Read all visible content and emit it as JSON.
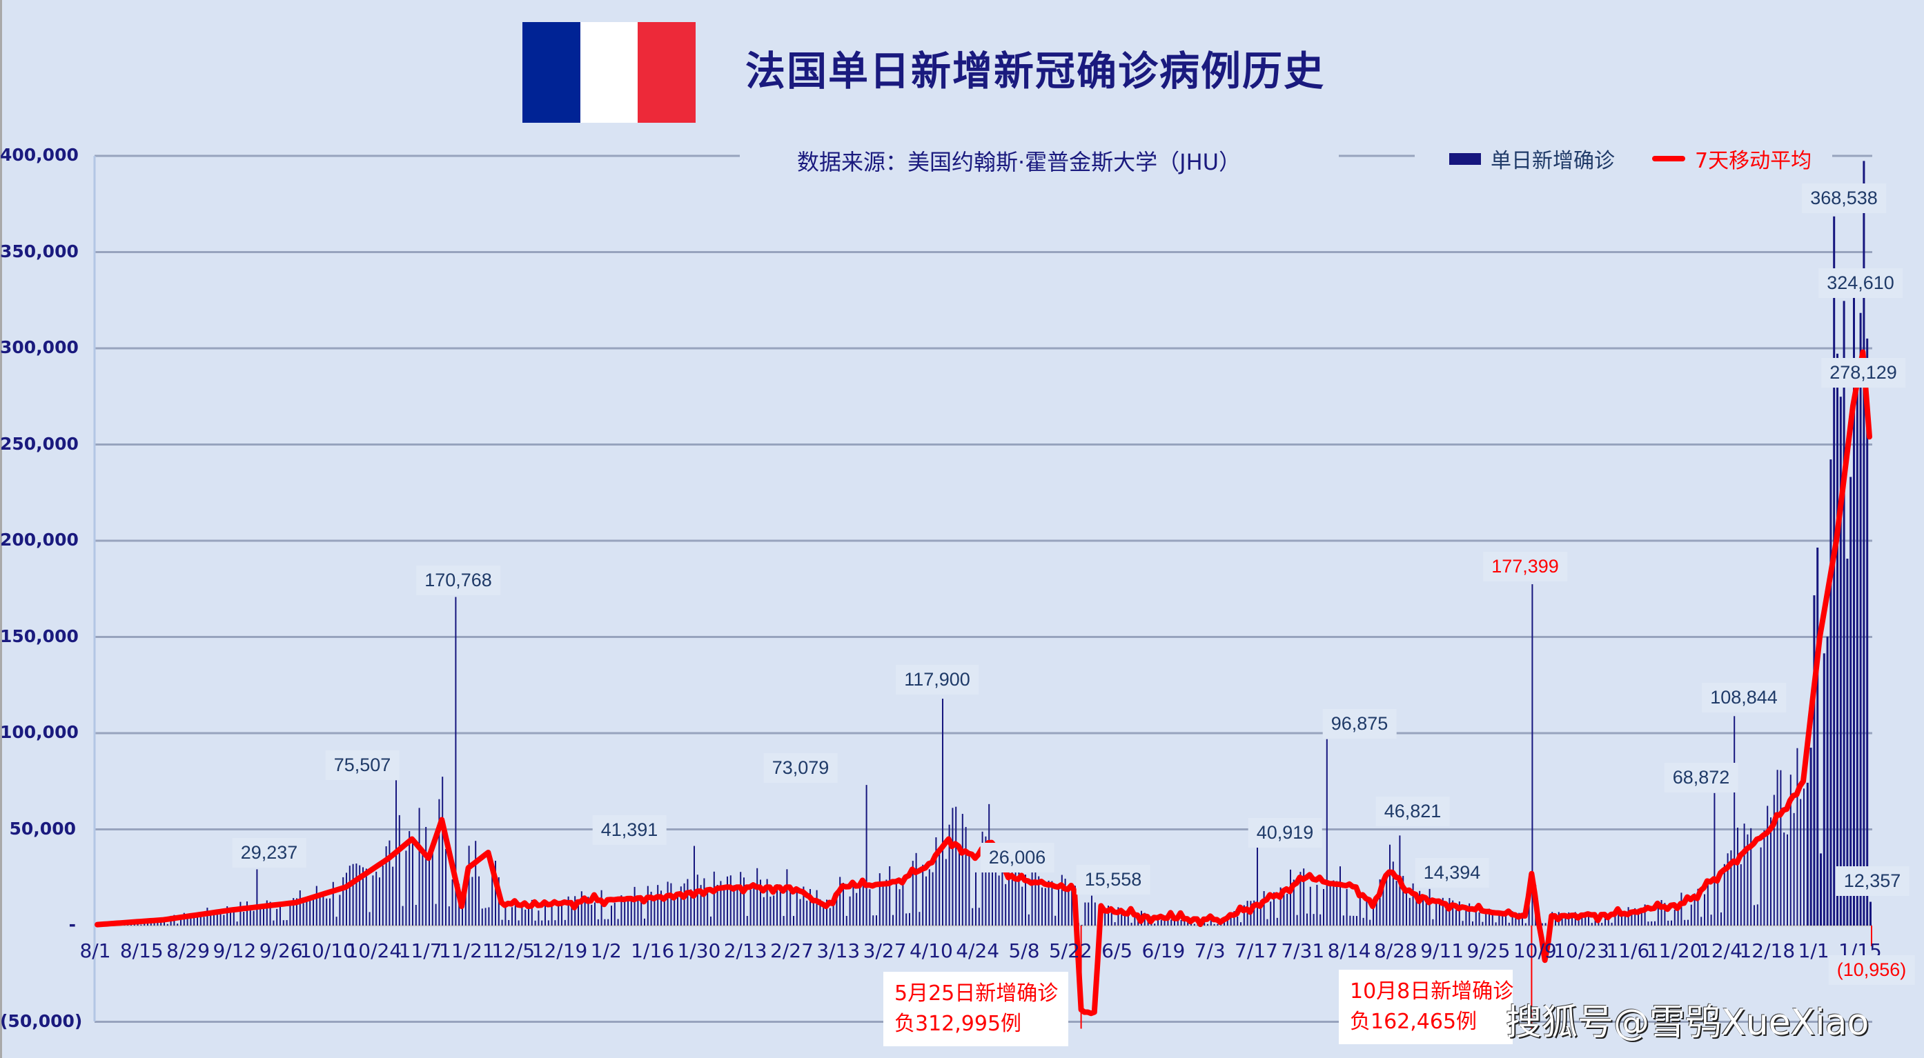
{
  "title": "法国单日新增新冠确诊病例历史",
  "subtitle": "数据来源：美国约翰斯·霍普金斯大学（JHU）",
  "legend": {
    "bars": "单日新增确诊",
    "line": "7天移动平均"
  },
  "colors": {
    "background": "#d9e3f3",
    "bars": "#16167e",
    "line": "#ff0000",
    "grid": "#97a3bd",
    "title": "#1a1a7e",
    "flag_blue": "#002395",
    "flag_white": "#ffffff",
    "flag_red": "#ed2939"
  },
  "watermark": "搜狐号@雪鸮XueXiao",
  "y_ticks": [
    "400,000",
    "350,000",
    "300,000",
    "250,000",
    "200,000",
    "150,000",
    "100,000",
    "50,000",
    "-",
    "(50,000)"
  ],
  "x_ticks": [
    "8/1",
    "8/15",
    "8/29",
    "9/12",
    "9/26",
    "10/10",
    "10/24",
    "11/7",
    "11/21",
    "12/5",
    "12/19",
    "1/2",
    "1/16",
    "1/30",
    "2/13",
    "2/27",
    "3/13",
    "3/27",
    "4/10",
    "4/24",
    "5/8",
    "5/22",
    "6/5",
    "6/19",
    "7/3",
    "7/17",
    "7/31",
    "8/14",
    "8/28",
    "9/11",
    "9/25",
    "10/9",
    "10/23",
    "11/6",
    "11/20",
    "12/4",
    "12/18",
    "1/1",
    "1/15"
  ],
  "annotations": [
    {
      "line1": "5月25日新增确诊",
      "line2": "负312,995例"
    },
    {
      "line1": "10月8日新增确诊",
      "line2": "负162,465例"
    }
  ],
  "chart_data": {
    "type": "bar",
    "title": "法国单日新增新冠确诊病例历史",
    "subtitle": "数据来源：美国约翰斯·霍普金斯大学（JHU）",
    "xlabel": "",
    "ylabel": "",
    "ylim": [
      -50000,
      400000
    ],
    "grid": true,
    "legend_position": "top-right",
    "x_start": "2020-08-01",
    "x_end": "2022-01-18",
    "series": [
      {
        "name": "单日新增确诊",
        "kind": "bar",
        "color": "#16167e"
      },
      {
        "name": "7天移动平均",
        "kind": "line",
        "color": "#ff0000"
      }
    ],
    "labeled_points": [
      {
        "day": 48,
        "date": "2020-09-18",
        "value": 29237,
        "label": "29,237"
      },
      {
        "day": 90,
        "date": "2020-10-30",
        "value": 75507,
        "label": "75,507"
      },
      {
        "day": 108,
        "date": "2020-11-17",
        "value": 170768,
        "label": "170,768"
      },
      {
        "day": 180,
        "date": "2021-01-28",
        "value": 41391,
        "label": "41,391"
      },
      {
        "day": 232,
        "date": "2021-03-21",
        "value": 73079,
        "label": "73,079"
      },
      {
        "day": 255,
        "date": "2021-04-13",
        "value": 117900,
        "label": "117,900"
      },
      {
        "day": 272,
        "date": "2021-04-30",
        "value": 26006,
        "label": "26,006"
      },
      {
        "day": 300,
        "date": "2021-05-28",
        "value": 15558,
        "label": "15,558"
      },
      {
        "day": 350,
        "date": "2021-07-16",
        "value": 40919,
        "label": "40,919"
      },
      {
        "day": 371,
        "date": "2021-08-06",
        "value": 96875,
        "label": "96,875"
      },
      {
        "day": 393,
        "date": "2021-08-28",
        "value": 46821,
        "label": "46,821"
      },
      {
        "day": 406,
        "date": "2021-09-10",
        "value": 14394,
        "label": "14,394"
      },
      {
        "day": 433,
        "date": "2021-10-07",
        "value": 177399,
        "label": "177,399",
        "color": "#ff0000"
      },
      {
        "day": 488,
        "date": "2021-12-01",
        "value": 68872,
        "label": "68,872"
      },
      {
        "day": 494,
        "date": "2021-12-07",
        "value": 108844,
        "label": "108,844"
      },
      {
        "day": 524,
        "date": "2022-01-06",
        "value": 368538,
        "label": "368,538"
      },
      {
        "day": 527,
        "date": "2022-01-09",
        "value": 324610,
        "label": "324,610"
      },
      {
        "day": 531,
        "date": "2022-01-13",
        "value": 278129,
        "label": "278,129"
      },
      {
        "day": 535,
        "date": "2022-01-17",
        "value": 12357,
        "label": "12,357"
      },
      {
        "day": 535,
        "date": "2022-01-17",
        "value": -10956,
        "label": "(10,956)",
        "color": "#ff0000"
      }
    ],
    "negative_events": [
      {
        "date": "2021-05-25",
        "value": -312995
      },
      {
        "date": "2021-10-08",
        "value": -162465
      }
    ],
    "moving_average_keypoints": [
      [
        0,
        500
      ],
      [
        20,
        3000
      ],
      [
        40,
        8000
      ],
      [
        60,
        12000
      ],
      [
        75,
        20000
      ],
      [
        88,
        35000
      ],
      [
        95,
        45000
      ],
      [
        100,
        35000
      ],
      [
        104,
        55000
      ],
      [
        110,
        10000
      ],
      [
        112,
        30000
      ],
      [
        118,
        38000
      ],
      [
        122,
        12000
      ],
      [
        130,
        10000
      ],
      [
        150,
        13000
      ],
      [
        170,
        15000
      ],
      [
        190,
        20000
      ],
      [
        210,
        20000
      ],
      [
        220,
        10000
      ],
      [
        225,
        20000
      ],
      [
        240,
        22000
      ],
      [
        250,
        30000
      ],
      [
        257,
        45000
      ],
      [
        265,
        35000
      ],
      [
        270,
        45000
      ],
      [
        275,
        25000
      ],
      [
        285,
        22000
      ],
      [
        295,
        18000
      ],
      [
        297,
        -45000
      ],
      [
        301,
        -45000
      ],
      [
        303,
        8000
      ],
      [
        320,
        4000
      ],
      [
        340,
        3000
      ],
      [
        355,
        15000
      ],
      [
        365,
        25000
      ],
      [
        372,
        22000
      ],
      [
        380,
        20000
      ],
      [
        385,
        10000
      ],
      [
        390,
        30000
      ],
      [
        395,
        18000
      ],
      [
        405,
        12000
      ],
      [
        420,
        7000
      ],
      [
        431,
        5000
      ],
      [
        433,
        27000
      ],
      [
        435,
        5000
      ],
      [
        437,
        -18000
      ],
      [
        439,
        5000
      ],
      [
        460,
        6000
      ],
      [
        480,
        12000
      ],
      [
        495,
        35000
      ],
      [
        505,
        50000
      ],
      [
        515,
        75000
      ],
      [
        520,
        150000
      ],
      [
        525,
        200000
      ],
      [
        530,
        270000
      ],
      [
        533,
        298000
      ],
      [
        536,
        232000
      ]
    ]
  }
}
